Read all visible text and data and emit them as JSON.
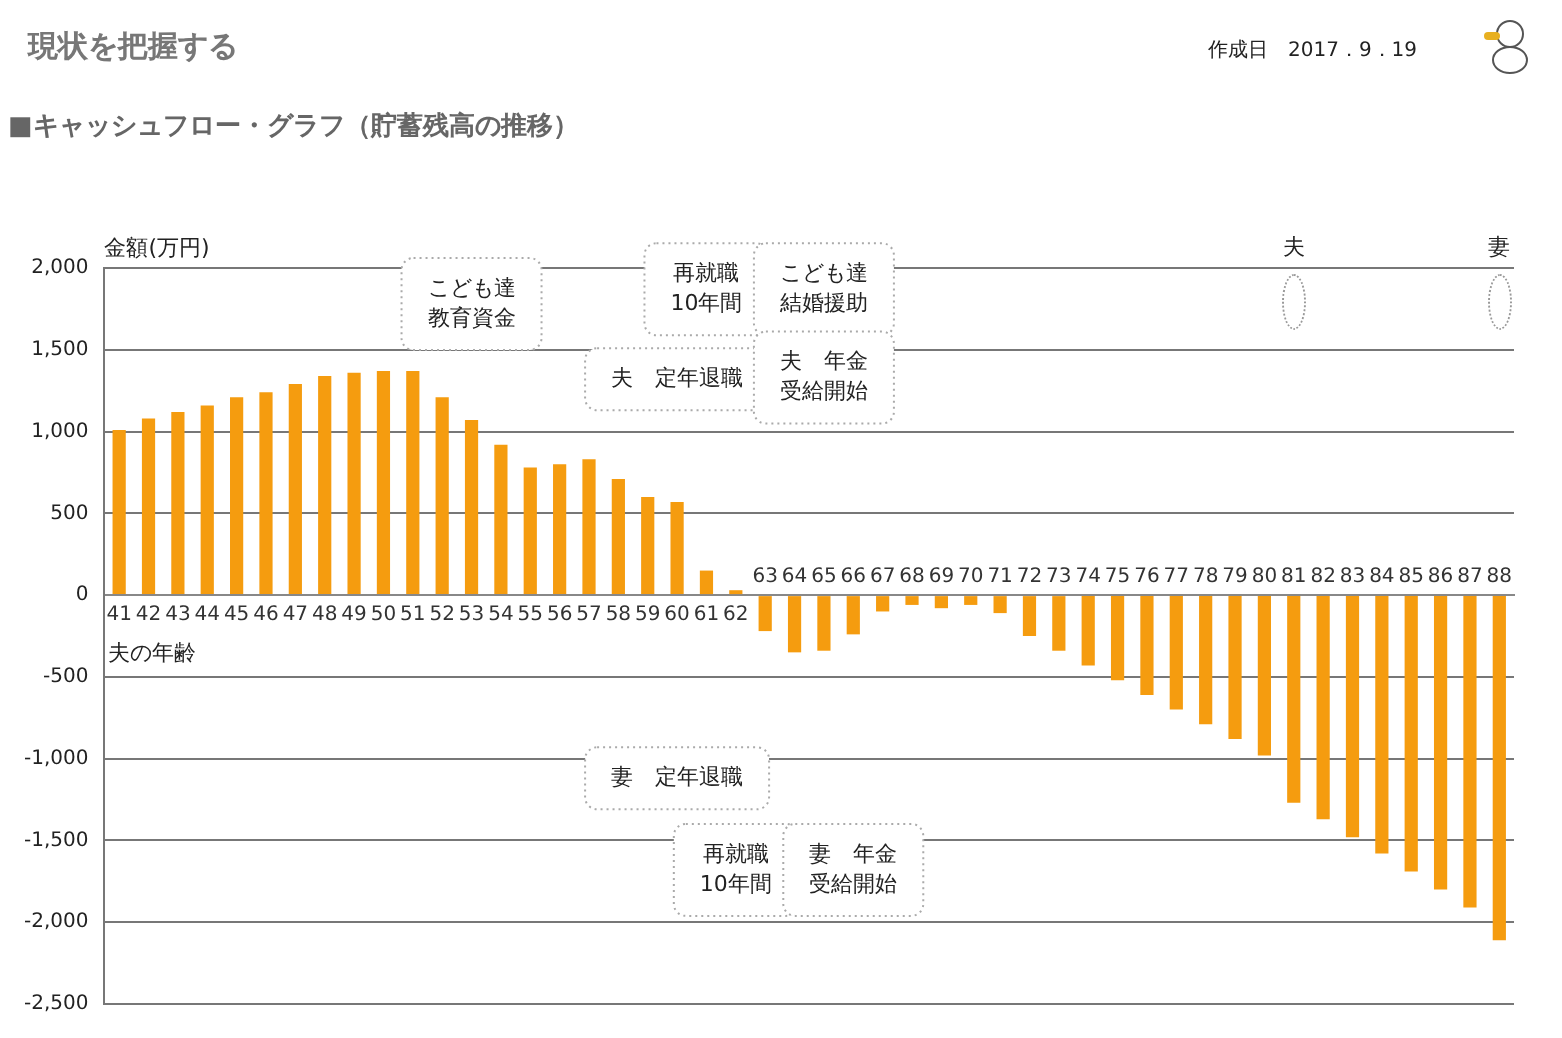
{
  "chart_data": {
    "type": "bar",
    "title": "現状を把握する",
    "subtitle": "■キャッシュフロー・グラフ（貯蓄残高の推移）",
    "xlabel": "夫の年齢",
    "ylabel": "金額(万円)",
    "categories": [
      "41",
      "42",
      "43",
      "44",
      "45",
      "46",
      "47",
      "48",
      "49",
      "50",
      "51",
      "52",
      "53",
      "54",
      "55",
      "56",
      "57",
      "58",
      "59",
      "60",
      "61",
      "62",
      "63",
      "64",
      "65",
      "66",
      "67",
      "68",
      "69",
      "70",
      "71",
      "72",
      "73",
      "74",
      "75",
      "76",
      "77",
      "78",
      "79",
      "80",
      "81",
      "82",
      "83",
      "84",
      "85",
      "86",
      "87",
      "88"
    ],
    "values": [
      1010,
      1080,
      1120,
      1160,
      1210,
      1240,
      1290,
      1340,
      1360,
      1370,
      1370,
      1210,
      1070,
      920,
      780,
      800,
      830,
      710,
      600,
      570,
      150,
      30,
      -220,
      -350,
      -340,
      -240,
      -100,
      -60,
      -80,
      -60,
      -110,
      -250,
      -340,
      -430,
      -520,
      -610,
      -700,
      -790,
      -880,
      -980,
      -1270,
      -1370,
      -1480,
      -1580,
      -1690,
      -1800,
      -1910,
      -2110
    ],
    "color": "#f59c0f",
    "ylim": [
      -2500,
      2000
    ],
    "yticks": [
      {
        "value": 2000,
        "label": "2,000"
      },
      {
        "value": 1500,
        "label": "1,500"
      },
      {
        "value": 1000,
        "label": "1,000"
      },
      500,
      0,
      -500,
      {
        "value": -1000,
        "label": "-1,000"
      },
      {
        "value": -1500,
        "label": "-1,500"
      },
      {
        "value": -2000,
        "label": "-2,000"
      },
      {
        "value": -2500,
        "label": "-2,500"
      }
    ],
    "grid": "y",
    "annotations": [
      "作成日　2017．9．19",
      "こども達教育資金",
      "再就職10年間",
      "こども達結婚援助",
      "夫　定年退職",
      "夫　年金受給開始",
      "妻　定年退職",
      "再就職10年間",
      "妻　年金受給開始",
      "夫",
      "妻"
    ]
  }
}
